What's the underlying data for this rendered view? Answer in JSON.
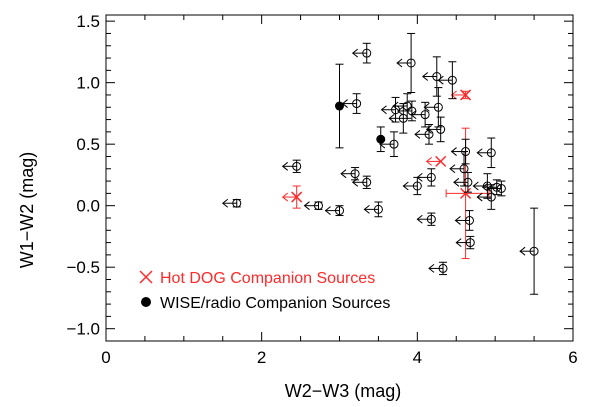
{
  "chart_data": {
    "type": "scatter",
    "title": "",
    "xlabel": "W2−W3 (mag)",
    "ylabel": "W1−W2 (mag)",
    "xlim": [
      0,
      6
    ],
    "ylim": [
      -1.1,
      1.55
    ],
    "xticks": [
      0,
      2,
      4,
      6
    ],
    "yticks": [
      -1.0,
      -0.5,
      0.0,
      0.5,
      1.0,
      1.5
    ],
    "xtick_labels": [
      "0",
      "2",
      "4",
      "6"
    ],
    "ytick_labels": [
      "−1.0",
      "−0.5",
      "0.0",
      "0.5",
      "1.0",
      "1.5"
    ],
    "grid": false,
    "legend_position": "bottom-left",
    "series": [
      {
        "name": "Hot DOG Companion Sources",
        "marker": "x",
        "color": "#ff2a2a",
        "points": [
          {
            "x": 4.62,
            "y": 0.9,
            "xerr_minus": 0.0,
            "xerr_plus": 0.0,
            "yerr": 0.03,
            "upper_limit": true
          },
          {
            "x": 4.3,
            "y": 0.36,
            "xerr_minus": 0.0,
            "xerr_plus": 0.0,
            "yerr": 0.0,
            "upper_limit": true
          },
          {
            "x": 4.62,
            "y": 0.1,
            "xerr_minus": 0.25,
            "xerr_plus": 0.3,
            "yerr": 0.53,
            "upper_limit": false
          },
          {
            "x": 2.45,
            "y": 0.07,
            "xerr_minus": 0.0,
            "xerr_plus": 0.0,
            "yerr": 0.09,
            "upper_limit": true
          }
        ]
      },
      {
        "name": "WISE/radio Companion Sources",
        "marker": "filled-circle",
        "color": "#000000",
        "points": [
          {
            "x": 3.0,
            "y": 0.81,
            "xerr_minus": 0.0,
            "xerr_plus": 0.0,
            "yerr": 0.34,
            "upper_limit": false
          },
          {
            "x": 3.53,
            "y": 0.54,
            "xerr_minus": 0.0,
            "xerr_plus": 0.0,
            "yerr": 0.1,
            "upper_limit": false
          }
        ]
      },
      {
        "name": "",
        "marker": "open-circle",
        "color": "#000000",
        "points": [
          {
            "x": 3.35,
            "y": 1.24,
            "yerr": 0.08,
            "upper_limit": true
          },
          {
            "x": 3.92,
            "y": 1.16,
            "yerr": 0.24,
            "upper_limit": true
          },
          {
            "x": 4.25,
            "y": 1.05,
            "yerr": 0.16,
            "upper_limit": true
          },
          {
            "x": 4.45,
            "y": 1.02,
            "yerr": 0.15,
            "upper_limit": true
          },
          {
            "x": 3.22,
            "y": 0.83,
            "yerr": 0.08,
            "upper_limit": true
          },
          {
            "x": 3.87,
            "y": 0.81,
            "yerr": 0.1,
            "upper_limit": true
          },
          {
            "x": 4.27,
            "y": 0.8,
            "yerr": 0.16,
            "upper_limit": true
          },
          {
            "x": 3.72,
            "y": 0.78,
            "yerr": 0.1,
            "upper_limit": true
          },
          {
            "x": 3.93,
            "y": 0.77,
            "yerr": 0.08,
            "upper_limit": true
          },
          {
            "x": 4.1,
            "y": 0.74,
            "yerr": 0.1,
            "upper_limit": true
          },
          {
            "x": 3.82,
            "y": 0.71,
            "yerr": 0.12,
            "upper_limit": true
          },
          {
            "x": 4.3,
            "y": 0.62,
            "yerr": 0.1,
            "upper_limit": true
          },
          {
            "x": 4.15,
            "y": 0.58,
            "yerr": 0.08,
            "upper_limit": true
          },
          {
            "x": 3.7,
            "y": 0.5,
            "yerr": 0.1,
            "upper_limit": true
          },
          {
            "x": 4.62,
            "y": 0.44,
            "yerr": 0.1,
            "upper_limit": true
          },
          {
            "x": 4.95,
            "y": 0.43,
            "yerr": 0.12,
            "upper_limit": true
          },
          {
            "x": 2.45,
            "y": 0.32,
            "yerr": 0.05,
            "upper_limit": true
          },
          {
            "x": 4.6,
            "y": 0.3,
            "yerr": 0.14,
            "upper_limit": true
          },
          {
            "x": 3.2,
            "y": 0.26,
            "yerr": 0.05,
            "upper_limit": true
          },
          {
            "x": 4.18,
            "y": 0.23,
            "yerr": 0.07,
            "upper_limit": true
          },
          {
            "x": 3.35,
            "y": 0.19,
            "yerr": 0.05,
            "upper_limit": true
          },
          {
            "x": 4.65,
            "y": 0.19,
            "yerr": 0.08,
            "upper_limit": true
          },
          {
            "x": 4.0,
            "y": 0.16,
            "yerr": 0.07,
            "upper_limit": true
          },
          {
            "x": 4.9,
            "y": 0.16,
            "yerr": 0.1,
            "upper_limit": true
          },
          {
            "x": 5.02,
            "y": 0.15,
            "yerr": 0.06,
            "upper_limit": true
          },
          {
            "x": 5.08,
            "y": 0.14,
            "yerr": 0.06,
            "upper_limit": true
          },
          {
            "x": 4.95,
            "y": 0.07,
            "yerr": 0.1,
            "upper_limit": true
          },
          {
            "x": 1.68,
            "y": 0.02,
            "yerr": 0.03,
            "upper_limit": true
          },
          {
            "x": 2.73,
            "y": 0.0,
            "yerr": 0.03,
            "upper_limit": true
          },
          {
            "x": 3.0,
            "y": -0.04,
            "yerr": 0.04,
            "upper_limit": true
          },
          {
            "x": 3.5,
            "y": -0.03,
            "yerr": 0.06,
            "upper_limit": true
          },
          {
            "x": 4.18,
            "y": -0.11,
            "yerr": 0.05,
            "upper_limit": true
          },
          {
            "x": 4.67,
            "y": -0.12,
            "yerr": 0.08,
            "upper_limit": true
          },
          {
            "x": 4.68,
            "y": -0.3,
            "yerr": 0.05,
            "upper_limit": true
          },
          {
            "x": 4.33,
            "y": -0.51,
            "yerr": 0.05,
            "upper_limit": true
          },
          {
            "x": 5.5,
            "y": -0.37,
            "yerr": 0.35,
            "upper_limit": true
          }
        ]
      }
    ]
  }
}
